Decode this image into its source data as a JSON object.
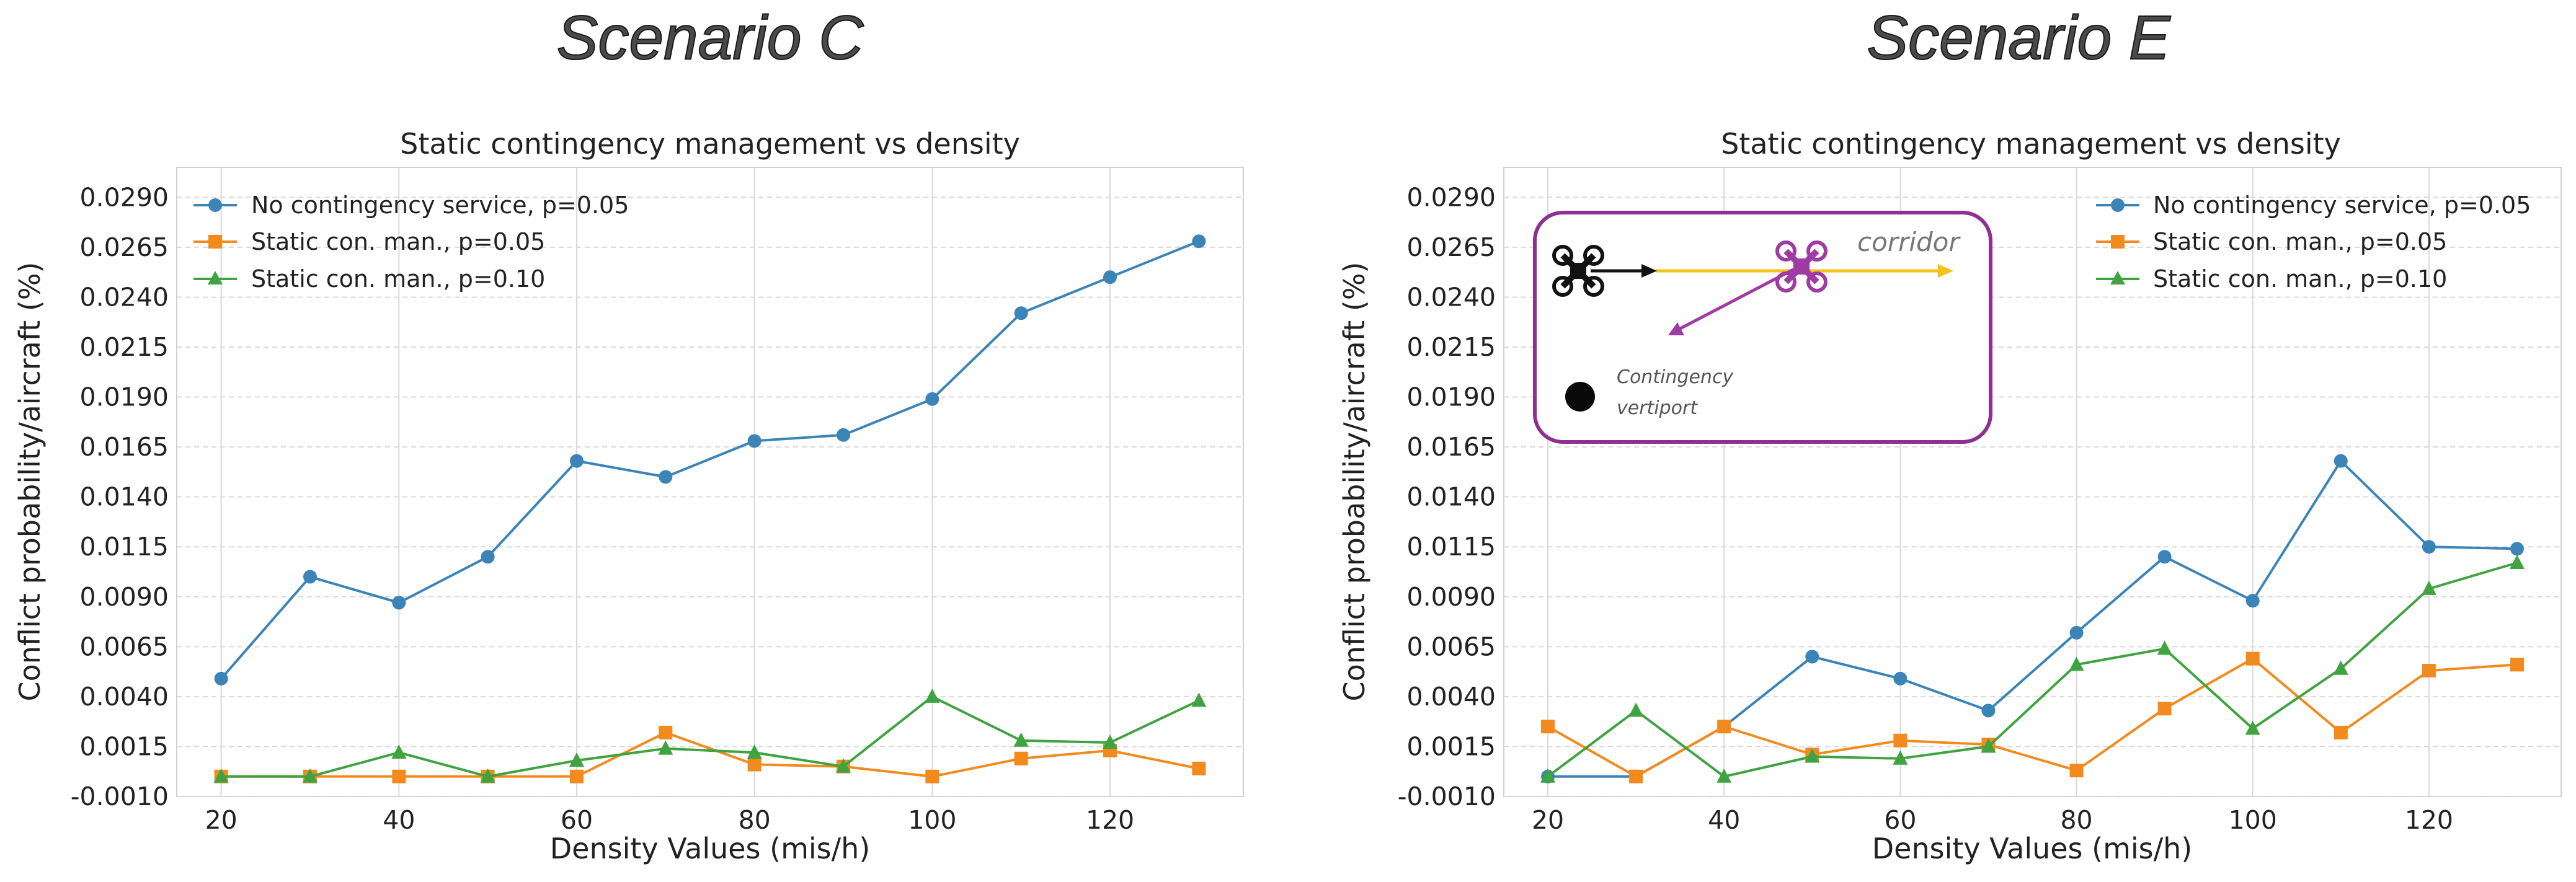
{
  "colors": {
    "blue": "#3b84b8",
    "orange": "#f28a1e",
    "green": "#3fa340",
    "inset_border": "#8e2f91",
    "drone_purple": "#a03aa5",
    "corridor_yellow": "#f3c21b"
  },
  "inset": {
    "corridor_label": "corridor",
    "vertiport_line1": "Contingency",
    "vertiport_line2": "vertiport",
    "icons": [
      "drone-black-icon",
      "drone-purple-icon",
      "vertiport-dot-icon"
    ]
  },
  "chart_data": [
    {
      "type": "line",
      "scenario_title": "Scenario C",
      "title": "Static contingency management vs density",
      "xlabel": "Density Values (mis/h)",
      "ylabel": "Conflict probability/aircraft (%)",
      "x": [
        20,
        30,
        40,
        50,
        60,
        70,
        80,
        90,
        100,
        110,
        120,
        130
      ],
      "xticks": [
        20,
        40,
        60,
        80,
        100,
        120
      ],
      "xlim": [
        15,
        135
      ],
      "ylim": [
        -0.001,
        0.0305
      ],
      "yticks": [
        "-0.0010",
        "0.0015",
        "0.0040",
        "0.0065",
        "0.0090",
        "0.0115",
        "0.0140",
        "0.0165",
        "0.0190",
        "0.0215",
        "0.0240",
        "0.0265",
        "0.0290"
      ],
      "grid": true,
      "legend_position": "top-left",
      "series": [
        {
          "name": "No contingency service, p=0.05",
          "color": "#3b84b8",
          "marker": "circle",
          "values": [
            0.0049,
            0.01,
            0.0087,
            0.011,
            0.0158,
            0.015,
            0.0168,
            0.0171,
            0.0189,
            0.0232,
            0.025,
            0.0268
          ]
        },
        {
          "name": "Static con. man., p=0.05",
          "color": "#f28a1e",
          "marker": "square",
          "values": [
            0.0,
            0.0,
            0.0,
            0.0,
            0.0,
            0.0022,
            0.0006,
            0.0005,
            0.0,
            0.0009,
            0.0013,
            0.0004
          ]
        },
        {
          "name": "Static con. man., p=0.10",
          "color": "#3fa340",
          "marker": "triangle",
          "values": [
            0.0,
            0.0,
            0.0012,
            0.0,
            0.0008,
            0.0014,
            0.0012,
            0.0005,
            0.004,
            0.0018,
            0.0017,
            0.0038
          ]
        }
      ]
    },
    {
      "type": "line",
      "scenario_title": "Scenario E",
      "title": "Static contingency management vs density",
      "xlabel": "Density Values (mis/h)",
      "ylabel": "Conflict probability/aircraft (%)",
      "x": [
        20,
        30,
        40,
        50,
        60,
        70,
        80,
        90,
        100,
        110,
        120,
        130
      ],
      "xticks": [
        20,
        40,
        60,
        80,
        100,
        120
      ],
      "xlim": [
        15,
        135
      ],
      "ylim": [
        -0.001,
        0.0305
      ],
      "yticks": [
        "-0.0010",
        "0.0015",
        "0.0040",
        "0.0065",
        "0.0090",
        "0.0115",
        "0.0140",
        "0.0165",
        "0.0190",
        "0.0215",
        "0.0240",
        "0.0265",
        "0.0290"
      ],
      "grid": true,
      "legend_position": "top-right",
      "series": [
        {
          "name": "No contingency service, p=0.05",
          "color": "#3b84b8",
          "marker": "circle",
          "values": [
            0.0,
            0.0,
            0.0025,
            0.006,
            0.0049,
            0.0033,
            0.0072,
            0.011,
            0.0088,
            0.0158,
            0.0115,
            0.0114
          ]
        },
        {
          "name": "Static con. man., p=0.05",
          "color": "#f28a1e",
          "marker": "square",
          "values": [
            0.0025,
            0.0,
            0.0025,
            0.0011,
            0.0018,
            0.0016,
            0.0003,
            0.0034,
            0.0059,
            0.0022,
            0.0053,
            0.0056
          ]
        },
        {
          "name": "Static con. man., p=0.10",
          "color": "#3fa340",
          "marker": "triangle",
          "values": [
            0.0,
            0.0033,
            0.0,
            0.001,
            0.0009,
            0.0015,
            0.0056,
            0.0064,
            0.0024,
            0.0054,
            0.0094,
            0.0107
          ]
        }
      ]
    }
  ]
}
